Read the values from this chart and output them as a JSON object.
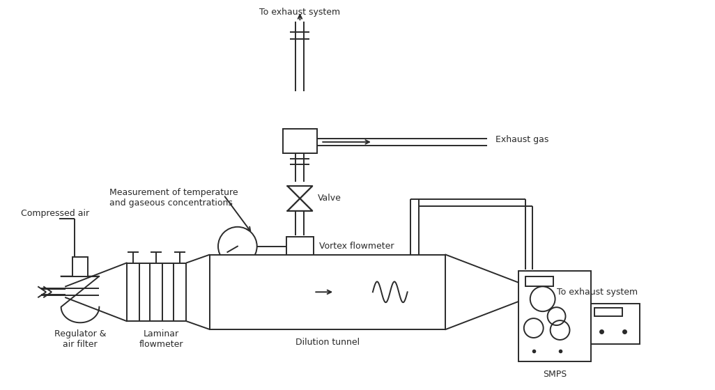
{
  "bg_color": "#ffffff",
  "line_color": "#2a2a2a",
  "lw": 1.4,
  "figsize": [
    10.26,
    5.6
  ],
  "dpi": 100,
  "labels": {
    "to_exhaust_top": "To exhaust system",
    "exhaust_gas": "Exhaust gas",
    "valve": "Valve",
    "measurement": "Measurement of temperature\nand gaseous concentrations",
    "vortex": "Vortex flowmeter",
    "compressed_air": "Compressed air",
    "regulator": "Regulator &\nair filter",
    "laminar": "Laminar\nflowmeter",
    "dilution_tunnel": "Dilution tunnel",
    "to_exhaust_right": "To exhaust system",
    "smps": "SMPS"
  },
  "fontsize": 9.0
}
